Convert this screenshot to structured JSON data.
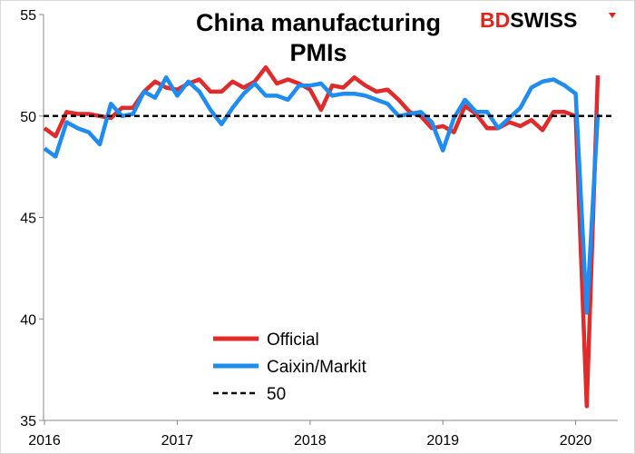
{
  "brand": {
    "bd": "BD",
    "swiss": "SWISS",
    "accent": "#e1251b"
  },
  "chart_data": {
    "type": "line",
    "title_lines": [
      "China manufacturing",
      "PMIs"
    ],
    "xlabel": "",
    "ylabel": "",
    "x_ticks": [
      "2016",
      "2017",
      "2018",
      "2019",
      "2020"
    ],
    "y_ticks": [
      "35",
      "40",
      "45",
      "50",
      "55"
    ],
    "ylim": [
      35,
      55
    ],
    "x_start": "2016-01",
    "grid": false,
    "legend_position": "lower-center",
    "series": [
      {
        "name": "Official",
        "color": "#e12a2a",
        "values": [
          49.4,
          49.0,
          50.2,
          50.1,
          50.1,
          50.0,
          49.9,
          50.4,
          50.4,
          51.2,
          51.7,
          51.4,
          51.3,
          51.6,
          51.8,
          51.2,
          51.2,
          51.7,
          51.4,
          51.7,
          52.4,
          51.6,
          51.8,
          51.6,
          51.3,
          50.3,
          51.5,
          51.4,
          51.9,
          51.5,
          51.2,
          51.3,
          50.8,
          50.2,
          50.0,
          49.4,
          49.5,
          49.2,
          50.5,
          50.1,
          49.4,
          49.4,
          49.7,
          49.5,
          49.8,
          49.3,
          50.2,
          50.2,
          50.0,
          35.7,
          52.0
        ]
      },
      {
        "name": "Caixin/Markit",
        "color": "#1e8cf0",
        "values": [
          48.4,
          48.0,
          49.7,
          49.4,
          49.2,
          48.6,
          50.6,
          50.0,
          50.1,
          51.2,
          50.9,
          51.9,
          51.0,
          51.7,
          51.2,
          50.3,
          49.6,
          50.4,
          51.1,
          51.6,
          51.0,
          51.0,
          50.8,
          51.5,
          51.5,
          51.6,
          51.0,
          51.1,
          51.1,
          51.0,
          50.8,
          50.6,
          50.0,
          50.1,
          50.2,
          49.7,
          48.3,
          49.9,
          50.8,
          50.2,
          50.2,
          49.4,
          49.9,
          50.4,
          51.4,
          51.7,
          51.8,
          51.5,
          51.1,
          40.3,
          50.1
        ]
      },
      {
        "name": "50",
        "color": "#000000",
        "dashed": true,
        "values": [
          50,
          50
        ]
      }
    ]
  }
}
